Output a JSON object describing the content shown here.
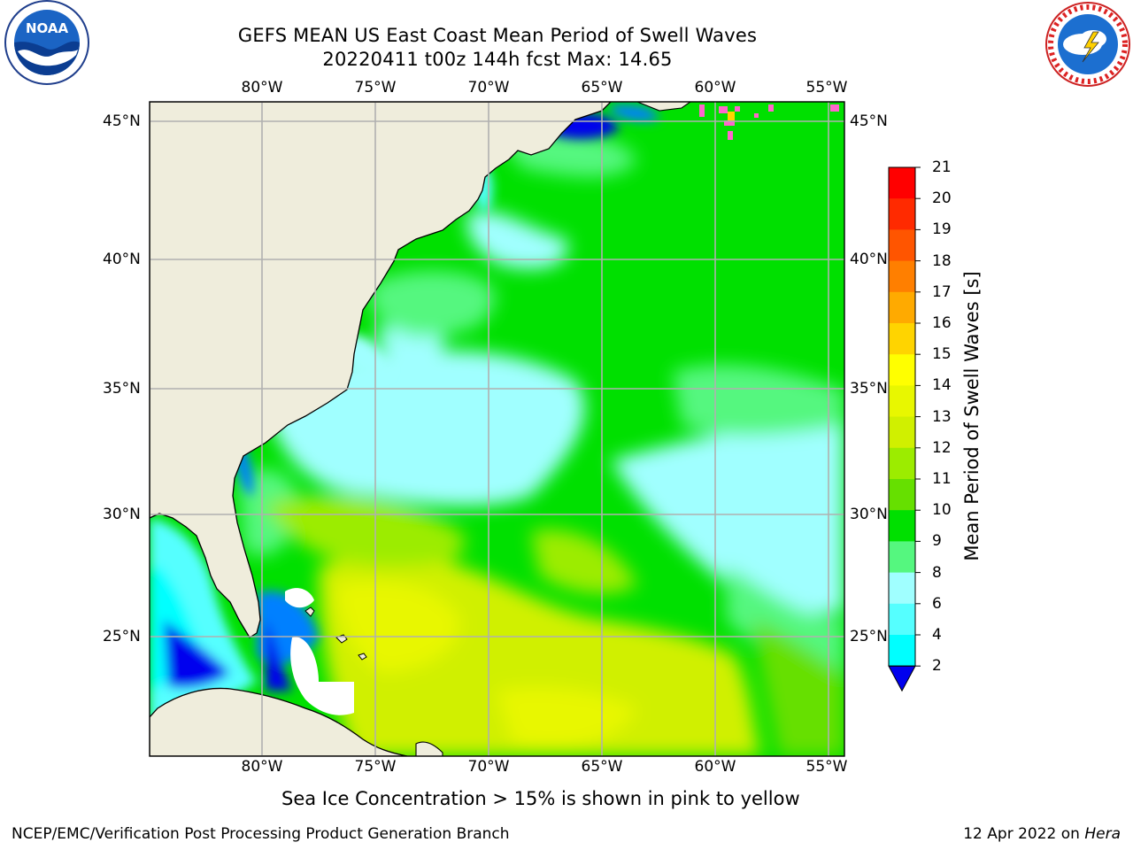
{
  "header": {
    "title_line1": "GEFS MEAN US East Coast Mean Period of Swell Waves",
    "title_line2": "20220411 t00z 144h fcst   Max: 14.65"
  },
  "map": {
    "lon_ticks": [
      "80°W",
      "75°W",
      "70°W",
      "65°W",
      "60°W",
      "55°W"
    ],
    "lat_ticks": [
      "45°N",
      "40°N",
      "35°N",
      "30°N",
      "25°N"
    ],
    "lon_extent": [
      -85,
      -54.3
    ],
    "lat_extent": [
      20.5,
      45.8
    ],
    "land_color": "#efeddc",
    "grid_color": "#b0b0b0"
  },
  "colorbar": {
    "label": "Mean Period of Swell Waves [s]",
    "ticks": [
      "21",
      "20",
      "19",
      "18",
      "17",
      "16",
      "15",
      "14",
      "13",
      "12",
      "11",
      "10",
      "9",
      "8",
      "6",
      "4",
      "2"
    ],
    "colors": [
      "#ff0000",
      "#ff2a00",
      "#ff5500",
      "#ff7f00",
      "#ffaa00",
      "#ffd400",
      "#ffff00",
      "#e8f700",
      "#d0f000",
      "#9cec00",
      "#66e000",
      "#00e000",
      "#55f77f",
      "#a0ffff",
      "#55ffff",
      "#00ffff",
      "#0080ff"
    ],
    "extend_color": "#0000ee"
  },
  "sea_ice_note": "Sea Ice Concentration > 15% is shown in pink to yellow",
  "footer": {
    "left": "NCEP/EMC/Verification Post Processing Product Generation Branch",
    "right_date": "12 Apr 2022 on ",
    "right_machine": "Hera"
  },
  "logos": {
    "noaa_text": "NOAA",
    "nws_text": "NATIONAL WEATHER SERVICE"
  }
}
